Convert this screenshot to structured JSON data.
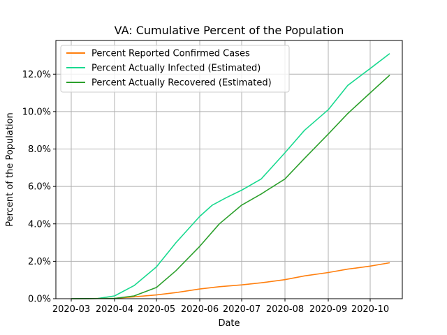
{
  "chart_data": {
    "type": "line",
    "title": "VA: Cumulative Percent of the Population",
    "xlabel": "Date",
    "ylabel": "Percent of the Population",
    "xlim": [
      "2020-02-19",
      "2020-10-24"
    ],
    "ylim": [
      0,
      13.8
    ],
    "x_ticks": [
      "2020-03",
      "2020-04",
      "2020-05",
      "2020-06",
      "2020-07",
      "2020-08",
      "2020-09",
      "2020-10"
    ],
    "y_ticks": [
      0,
      2,
      4,
      6,
      8,
      10,
      12
    ],
    "y_tick_labels": [
      "0.0%",
      "2.0%",
      "4.0%",
      "6.0%",
      "8.0%",
      "10.0%",
      "12.0%"
    ],
    "grid": true,
    "legend_position": "top-left",
    "series": [
      {
        "name": "Percent Reported Confirmed Cases",
        "color": "#ff7f0e",
        "x": [
          "2020-03-01",
          "2020-04-01",
          "2020-04-15",
          "2020-05-01",
          "2020-05-15",
          "2020-06-01",
          "2020-06-15",
          "2020-07-01",
          "2020-07-15",
          "2020-08-01",
          "2020-08-15",
          "2020-09-01",
          "2020-09-15",
          "2020-10-01",
          "2020-10-15"
        ],
        "y": [
          0.0,
          0.02,
          0.1,
          0.2,
          0.33,
          0.52,
          0.64,
          0.74,
          0.85,
          1.02,
          1.22,
          1.4,
          1.58,
          1.74,
          1.92
        ]
      },
      {
        "name": "Percent Actually Infected (Estimated)",
        "color": "#19d98f",
        "x": [
          "2020-03-01",
          "2020-03-20",
          "2020-04-01",
          "2020-04-15",
          "2020-05-01",
          "2020-05-15",
          "2020-06-01",
          "2020-06-10",
          "2020-06-20",
          "2020-07-01",
          "2020-07-15",
          "2020-08-01",
          "2020-08-15",
          "2020-09-01",
          "2020-09-15",
          "2020-10-01",
          "2020-10-15"
        ],
        "y": [
          0.0,
          0.01,
          0.15,
          0.7,
          1.7,
          3.0,
          4.4,
          5.0,
          5.4,
          5.8,
          6.4,
          7.8,
          9.0,
          10.1,
          11.4,
          12.3,
          13.1
        ]
      },
      {
        "name": "Percent Actually Recovered (Estimated)",
        "color": "#2ca02c",
        "x": [
          "2020-03-01",
          "2020-04-01",
          "2020-04-15",
          "2020-05-01",
          "2020-05-15",
          "2020-06-01",
          "2020-06-15",
          "2020-07-01",
          "2020-07-15",
          "2020-08-01",
          "2020-08-15",
          "2020-09-01",
          "2020-09-15",
          "2020-10-01",
          "2020-10-15"
        ],
        "y": [
          0.0,
          0.02,
          0.15,
          0.6,
          1.5,
          2.8,
          4.0,
          5.0,
          5.6,
          6.4,
          7.5,
          8.8,
          9.9,
          11.0,
          11.95
        ]
      }
    ]
  }
}
